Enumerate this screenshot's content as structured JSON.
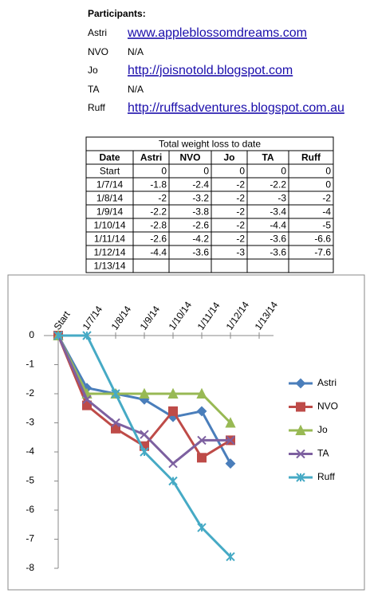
{
  "participants": {
    "heading": "Participants:",
    "items": [
      {
        "name": "Astri",
        "link": "www.appleblossomdreams.com"
      },
      {
        "name": "NVO",
        "note": "N/A"
      },
      {
        "name": "Jo",
        "link": "http://joisnotold.blogspot.com"
      },
      {
        "name": "TA",
        "note": "N/A"
      },
      {
        "name": "Ruff",
        "link": "http://ruffsadventures.blogspot.com.au"
      }
    ]
  },
  "table": {
    "title": "Total weight loss to date",
    "header": [
      "Date",
      "Astri",
      "NVO",
      "Jo",
      "TA",
      "Ruff"
    ],
    "rows": [
      [
        "Start",
        0,
        0,
        0,
        0,
        0
      ],
      [
        "1/7/14",
        -1.8,
        -2.4,
        -2,
        -2.2,
        0
      ],
      [
        "1/8/14",
        -2,
        -3.2,
        -2,
        -3,
        -2
      ],
      [
        "1/9/14",
        -2.2,
        -3.8,
        -2,
        -3.4,
        -4
      ],
      [
        "1/10/14",
        -2.8,
        -2.6,
        -2,
        -4.4,
        -5
      ],
      [
        "1/11/14",
        -2.6,
        -4.2,
        -2,
        -3.6,
        -6.6
      ],
      [
        "1/12/14",
        -4.4,
        -3.6,
        -3,
        -3.6,
        -7.6
      ],
      [
        "1/13/14"
      ]
    ]
  },
  "chart_data": {
    "type": "line",
    "categories": [
      "Start",
      "1/7/14",
      "1/8/14",
      "1/9/14",
      "1/10/14",
      "1/11/14",
      "1/12/14",
      "1/13/14"
    ],
    "ylim": [
      -8,
      0
    ],
    "yticks": [
      0,
      -1,
      -2,
      -3,
      -4,
      -5,
      -6,
      -7,
      -8
    ],
    "legend": "right",
    "series": [
      {
        "name": "Astri",
        "color": "#4a7ebb",
        "marker": "diamond",
        "values": [
          0,
          -1.8,
          -2,
          -2.2,
          -2.8,
          -2.6,
          -4.4,
          null
        ]
      },
      {
        "name": "NVO",
        "color": "#be4b48",
        "marker": "square",
        "values": [
          0,
          -2.4,
          -3.2,
          -3.8,
          -2.6,
          -4.2,
          -3.6,
          null
        ]
      },
      {
        "name": "Jo",
        "color": "#98b954",
        "marker": "triangle",
        "values": [
          0,
          -2,
          -2,
          -2,
          -2,
          -2,
          -3,
          null
        ]
      },
      {
        "name": "TA",
        "color": "#7d60a0",
        "marker": "x",
        "values": [
          0,
          -2.2,
          -3,
          -3.4,
          -4.4,
          -3.6,
          -3.6,
          null
        ]
      },
      {
        "name": "Ruff",
        "color": "#46aac5",
        "marker": "star",
        "values": [
          0,
          0,
          -2,
          -4,
          -5,
          -6.6,
          -7.6,
          null
        ]
      }
    ]
  }
}
